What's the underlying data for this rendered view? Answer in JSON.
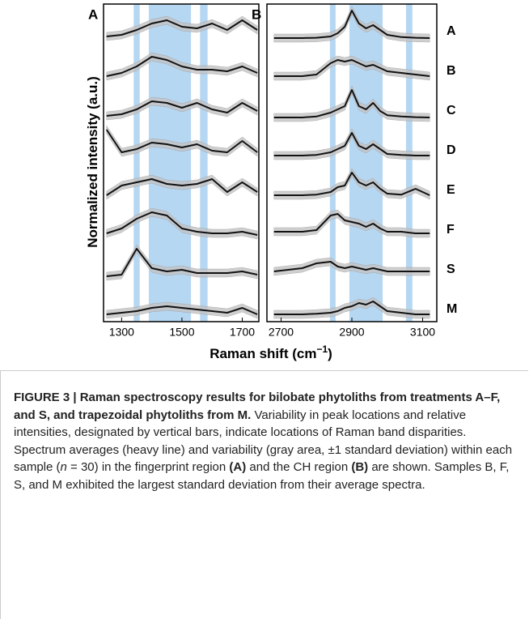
{
  "chart_data": [
    {
      "type": "line",
      "panel_label": "A",
      "ylabel": "Normalized intensity (a.u.)",
      "x": [
        1250,
        1300,
        1350,
        1400,
        1450,
        1500,
        1550,
        1600,
        1650,
        1700,
        1750
      ],
      "xlim": [
        1240,
        1755
      ],
      "xticks": [
        1300,
        1500,
        1700
      ],
      "bands": [
        [
          1340,
          1360
        ],
        [
          1390,
          1530
        ],
        [
          1560,
          1585
        ]
      ],
      "band_color": "#a9d0f0",
      "line_color": "#111111",
      "sd_color": "#c4c4c4",
      "series": [
        {
          "values": [
            0.1,
            0.15,
            0.3,
            0.5,
            0.6,
            0.4,
            0.35,
            0.5,
            0.3,
            0.6,
            0.3
          ]
        },
        {
          "values": [
            0.1,
            0.2,
            0.4,
            0.7,
            0.6,
            0.4,
            0.3,
            0.3,
            0.25,
            0.4,
            0.2
          ]
        },
        {
          "values": [
            0.1,
            0.15,
            0.3,
            0.55,
            0.5,
            0.35,
            0.5,
            0.3,
            0.2,
            0.5,
            0.25
          ]
        },
        {
          "values": [
            0.9,
            0.2,
            0.3,
            0.5,
            0.45,
            0.35,
            0.45,
            0.25,
            0.2,
            0.55,
            0.2
          ]
        },
        {
          "values": [
            0.1,
            0.4,
            0.5,
            0.6,
            0.45,
            0.4,
            0.45,
            0.6,
            0.2,
            0.5,
            0.2
          ]
        },
        {
          "values": [
            0.15,
            0.3,
            0.6,
            0.8,
            0.7,
            0.3,
            0.2,
            0.15,
            0.15,
            0.2,
            0.1
          ]
        },
        {
          "values": [
            0.05,
            0.1,
            0.9,
            0.3,
            0.2,
            0.25,
            0.15,
            0.15,
            0.15,
            0.2,
            0.1
          ]
        },
        {
          "values": [
            0.1,
            0.15,
            0.2,
            0.3,
            0.35,
            0.3,
            0.25,
            0.2,
            0.15,
            0.3,
            0.1
          ]
        }
      ]
    },
    {
      "type": "line",
      "panel_label": "B",
      "x": [
        2680,
        2720,
        2760,
        2800,
        2840,
        2860,
        2880,
        2900,
        2920,
        2940,
        2960,
        2980,
        3000,
        3040,
        3080,
        3120
      ],
      "xlim": [
        2660,
        3140
      ],
      "xticks": [
        2700,
        2900,
        3100
      ],
      "bands": [
        [
          2838,
          2854
        ],
        [
          2893,
          2987
        ],
        [
          3053,
          3071
        ]
      ],
      "band_color": "#a9d0f0",
      "line_color": "#111111",
      "sd_color": "#c4c4c4",
      "series": [
        {
          "name": "A",
          "values": [
            0.05,
            0.05,
            0.05,
            0.06,
            0.1,
            0.2,
            0.4,
            0.9,
            0.5,
            0.35,
            0.45,
            0.3,
            0.15,
            0.08,
            0.06,
            0.05
          ]
        },
        {
          "name": "B",
          "values": [
            0.1,
            0.1,
            0.1,
            0.15,
            0.5,
            0.6,
            0.55,
            0.6,
            0.5,
            0.4,
            0.45,
            0.35,
            0.25,
            0.2,
            0.15,
            0.1
          ]
        },
        {
          "name": "C",
          "values": [
            0.05,
            0.05,
            0.05,
            0.08,
            0.2,
            0.3,
            0.4,
            0.9,
            0.4,
            0.3,
            0.5,
            0.25,
            0.12,
            0.08,
            0.06,
            0.05
          ]
        },
        {
          "name": "D",
          "values": [
            0.1,
            0.1,
            0.1,
            0.12,
            0.2,
            0.3,
            0.4,
            0.8,
            0.4,
            0.3,
            0.45,
            0.3,
            0.15,
            0.12,
            0.1,
            0.1
          ]
        },
        {
          "name": "E",
          "values": [
            0.1,
            0.1,
            0.1,
            0.12,
            0.2,
            0.35,
            0.4,
            0.8,
            0.5,
            0.4,
            0.5,
            0.3,
            0.15,
            0.12,
            0.3,
            0.1
          ]
        },
        {
          "name": "F",
          "values": [
            0.2,
            0.2,
            0.2,
            0.25,
            0.7,
            0.75,
            0.55,
            0.5,
            0.45,
            0.35,
            0.45,
            0.3,
            0.2,
            0.2,
            0.15,
            0.15
          ]
        },
        {
          "name": "S",
          "values": [
            0.2,
            0.25,
            0.3,
            0.45,
            0.5,
            0.35,
            0.3,
            0.35,
            0.3,
            0.25,
            0.3,
            0.25,
            0.2,
            0.2,
            0.2,
            0.2
          ]
        },
        {
          "name": "M",
          "values": [
            0.1,
            0.1,
            0.1,
            0.12,
            0.15,
            0.2,
            0.3,
            0.35,
            0.45,
            0.4,
            0.5,
            0.35,
            0.2,
            0.15,
            0.1,
            0.1
          ]
        }
      ]
    }
  ],
  "figure": {
    "xlabel": "Raman shift (cm",
    "xlabel_sup": "−1",
    "xlabel_end": ")"
  },
  "caption": [
    {
      "style": "bold",
      "text": "FIGURE 3 | Raman spectroscopy results for bilobate phytoliths from treatments A–F, and S, and trapezoidal phytoliths from M."
    },
    {
      "style": "normal",
      "text": " Variability in peak locations and relative intensities, designated by vertical bars, indicate locations of Raman band disparities. Spectrum averages (heavy line) and variability (gray area, ±1 standard deviation) within each sample ("
    },
    {
      "style": "italic",
      "text": "n"
    },
    {
      "style": "normal",
      "text": " = 30) in the fingerprint region "
    },
    {
      "style": "bold",
      "text": "(A)"
    },
    {
      "style": "normal",
      "text": " and the CH region "
    },
    {
      "style": "bold",
      "text": "(B)"
    },
    {
      "style": "normal",
      "text": " are shown. Samples B, F, S, and M exhibited the largest standard deviation from their average spectra."
    }
  ]
}
